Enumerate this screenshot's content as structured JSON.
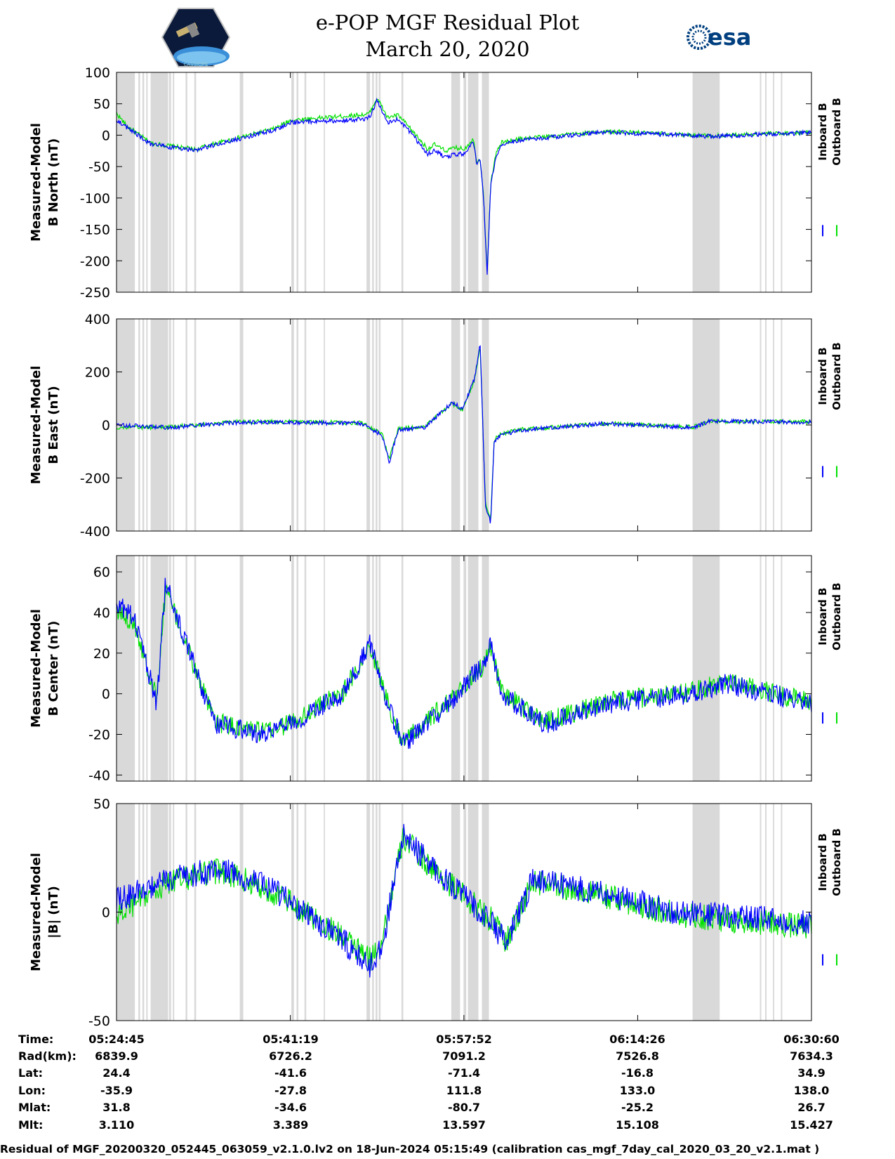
{
  "header": {
    "title_line1": "e-POP MGF Residual Plot",
    "title_line2": "March 20, 2020",
    "left_logo_caption": "CASSIOPE",
    "right_logo_text": "esa"
  },
  "colors": {
    "inboard": "#0000ff",
    "outboard": "#00e000",
    "gap_shading": "#d9d9d9"
  },
  "legend": {
    "inboard_label": "Inboard B",
    "outboard_label": "Outboard B"
  },
  "chart_data": [
    {
      "type": "line",
      "ylabel_line1": "Measured-Model",
      "ylabel_line2": "B North (nT)",
      "ylim": [
        -250,
        100
      ],
      "yticks": [
        100,
        50,
        0,
        -50,
        -100,
        -150,
        -200,
        -250
      ],
      "xlim_seconds": [
        0,
        3975
      ],
      "series": [
        {
          "name": "Inboard B",
          "x": [
            0,
            60,
            200,
            460,
            500,
            900,
            1000,
            1430,
            1450,
            1490,
            1550,
            1610,
            1650,
            1780,
            1820,
            1880,
            1940,
            1990,
            2040,
            2060,
            2080,
            2100,
            2120,
            2140,
            2170,
            2200,
            2300,
            2800,
            3400,
            3975
          ],
          "y": [
            25,
            12,
            -15,
            -25,
            -20,
            8,
            20,
            25,
            30,
            55,
            20,
            25,
            15,
            -30,
            -25,
            -35,
            -30,
            -30,
            -10,
            -45,
            -40,
            -100,
            -225,
            -80,
            -35,
            -15,
            -8,
            5,
            -2,
            4
          ]
        },
        {
          "name": "Outboard B",
          "x": [
            0,
            60,
            200,
            460,
            500,
            900,
            1000,
            1430,
            1450,
            1490,
            1550,
            1610,
            1650,
            1780,
            1820,
            1880,
            1940,
            1990,
            2040,
            2060,
            2080,
            2100,
            2120,
            2140,
            2170,
            2200,
            2300,
            2800,
            3400,
            3975
          ],
          "y": [
            35,
            14,
            -13,
            -23,
            -18,
            10,
            24,
            33,
            36,
            60,
            28,
            32,
            20,
            -22,
            -15,
            -25,
            -20,
            -22,
            -5,
            -42,
            -38,
            -98,
            -220,
            -76,
            -30,
            -12,
            -6,
            6,
            -1,
            5
          ]
        }
      ]
    },
    {
      "type": "line",
      "ylabel_line1": "Measured-Model",
      "ylabel_line2": "B East (nT)",
      "ylim": [
        -400,
        400
      ],
      "yticks": [
        400,
        200,
        0,
        -200,
        -400
      ],
      "xlim_seconds": [
        0,
        3975
      ],
      "series": [
        {
          "name": "Inboard B",
          "x": [
            0,
            300,
            700,
            1000,
            1400,
            1520,
            1560,
            1610,
            1760,
            1920,
            1980,
            2050,
            2080,
            2110,
            2140,
            2160,
            2200,
            2300,
            2800,
            3300,
            3400,
            3975
          ],
          "y": [
            0,
            -10,
            10,
            10,
            5,
            -40,
            -140,
            -20,
            -10,
            85,
            60,
            180,
            305,
            -300,
            -370,
            -60,
            -40,
            -20,
            5,
            -10,
            15,
            10
          ]
        },
        {
          "name": "Outboard B",
          "x": [
            0,
            300,
            700,
            1000,
            1400,
            1520,
            1560,
            1610,
            1760,
            1920,
            1980,
            2050,
            2080,
            2110,
            2140,
            2160,
            2200,
            2300,
            2800,
            3300,
            3400,
            3975
          ],
          "y": [
            -10,
            -8,
            12,
            12,
            8,
            -35,
            -130,
            -15,
            -5,
            80,
            58,
            175,
            295,
            -290,
            -360,
            -55,
            -35,
            -18,
            6,
            -8,
            14,
            12
          ]
        }
      ]
    },
    {
      "type": "line",
      "ylabel_line1": "Measured-Model",
      "ylabel_line2": "B Center (nT)",
      "ylim": [
        -43,
        68
      ],
      "yticks": [
        60,
        40,
        20,
        0,
        -20,
        -40
      ],
      "xlim_seconds": [
        0,
        3975
      ],
      "series": [
        {
          "name": "Inboard B",
          "x": [
            0,
            100,
            230,
            280,
            560,
            850,
            1000,
            1300,
            1450,
            1550,
            1640,
            1900,
            2100,
            2140,
            2200,
            2450,
            2800,
            3300,
            3480,
            3975
          ],
          "y": [
            45,
            38,
            -5,
            55,
            -15,
            -20,
            -15,
            0,
            25,
            -5,
            -25,
            -5,
            15,
            25,
            0,
            -15,
            -5,
            0,
            5,
            -5
          ]
        },
        {
          "name": "Outboard B",
          "x": [
            0,
            100,
            230,
            280,
            560,
            850,
            1000,
            1300,
            1450,
            1550,
            1640,
            1900,
            2100,
            2140,
            2200,
            2450,
            2800,
            3300,
            3480,
            3975
          ],
          "y": [
            40,
            36,
            -3,
            52,
            -14,
            -19,
            -14,
            1,
            24,
            -4,
            -24,
            -4,
            14,
            24,
            1,
            -14,
            -4,
            1,
            6,
            -4
          ]
        }
      ]
    },
    {
      "type": "line",
      "ylabel_line1": "Measured-Model",
      "ylabel_line2": "|B| (nT)",
      "ylim": [
        -50,
        50
      ],
      "yticks": [
        50,
        0,
        -50
      ],
      "xlim_seconds": [
        0,
        3975
      ],
      "series": [
        {
          "name": "Inboard B",
          "x": [
            0,
            300,
            600,
            900,
            1250,
            1450,
            1520,
            1640,
            1820,
            2150,
            2230,
            2380,
            2700,
            3200,
            3975
          ],
          "y": [
            5,
            15,
            20,
            10,
            -10,
            -25,
            -15,
            35,
            20,
            -5,
            -15,
            15,
            10,
            0,
            -5
          ]
        },
        {
          "name": "Outboard B",
          "x": [
            0,
            300,
            600,
            900,
            1250,
            1450,
            1520,
            1640,
            1820,
            2150,
            2230,
            2380,
            2700,
            3200,
            3975
          ],
          "y": [
            -2,
            14,
            19,
            9,
            -9,
            -22,
            -12,
            34,
            19,
            -4,
            -14,
            14,
            9,
            -1,
            -7
          ]
        }
      ]
    }
  ],
  "gap_intervals_seconds": [
    [
      0,
      105
    ],
    [
      125,
      135
    ],
    [
      148,
      158
    ],
    [
      170,
      178
    ],
    [
      195,
      295
    ],
    [
      300,
      312
    ],
    [
      322,
      330
    ],
    [
      395,
      405
    ],
    [
      445,
      455
    ],
    [
      705,
      725
    ],
    [
      1000,
      1015
    ],
    [
      1030,
      1040
    ],
    [
      1075,
      1085
    ],
    [
      1185,
      1192
    ],
    [
      1430,
      1450
    ],
    [
      1462,
      1472
    ],
    [
      1482,
      1492
    ],
    [
      1500,
      1510
    ],
    [
      1630,
      1640
    ],
    [
      1915,
      1965
    ],
    [
      1985,
      2000
    ],
    [
      2010,
      2070
    ],
    [
      2090,
      2130
    ],
    [
      3295,
      3450
    ],
    [
      3680,
      3688
    ],
    [
      3710,
      3718
    ],
    [
      3755,
      3762
    ],
    [
      3800,
      3808
    ]
  ],
  "table": {
    "row_labels": [
      "Time:",
      "Rad(km):",
      "Lat:",
      "Lon:",
      "Mlat:",
      "Mlt:"
    ],
    "columns": [
      [
        "05:24:45",
        "6839.9",
        "24.4",
        "-35.9",
        "31.8",
        "3.110"
      ],
      [
        "05:41:19",
        "6726.2",
        "-41.6",
        "-27.8",
        "-34.6",
        "3.389"
      ],
      [
        "05:57:52",
        "7091.2",
        "-71.4",
        "111.8",
        "-80.7",
        "13.597"
      ],
      [
        "06:14:26",
        "7526.8",
        "-16.8",
        "133.0",
        "-25.2",
        "15.108"
      ],
      [
        "06:30:60",
        "7634.3",
        "34.9",
        "138.0",
        "26.7",
        "15.427"
      ]
    ]
  },
  "footer": "Residual of MGF_20200320_052445_063059_v2.1.0.lv2 on 18-Jun-2024 05:15:49 (calibration cas_mgf_7day_cal_2020_03_20_v2.1.mat )"
}
